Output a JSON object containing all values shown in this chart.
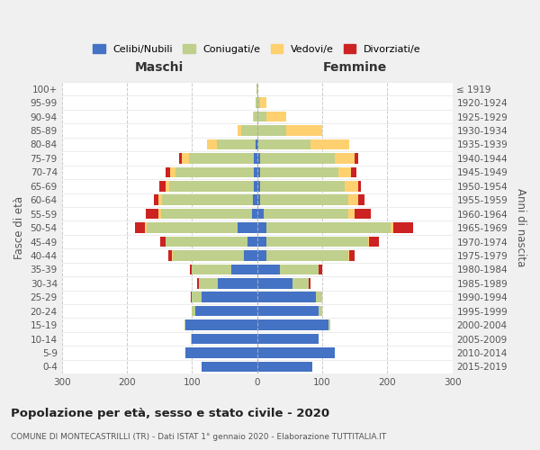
{
  "age_groups": [
    "100+",
    "95-99",
    "90-94",
    "85-89",
    "80-84",
    "75-79",
    "70-74",
    "65-69",
    "60-64",
    "55-59",
    "50-54",
    "45-49",
    "40-44",
    "35-39",
    "30-34",
    "25-29",
    "20-24",
    "15-19",
    "10-14",
    "5-9",
    "0-4"
  ],
  "birth_years": [
    "≤ 1919",
    "1920-1924",
    "1925-1929",
    "1930-1934",
    "1935-1939",
    "1940-1944",
    "1945-1949",
    "1950-1954",
    "1955-1959",
    "1960-1964",
    "1965-1969",
    "1970-1974",
    "1975-1979",
    "1980-1984",
    "1985-1989",
    "1990-1994",
    "1995-1999",
    "2000-2004",
    "2005-2009",
    "2010-2014",
    "2015-2019"
  ],
  "maschi": {
    "celibi": [
      0,
      0,
      0,
      0,
      2,
      5,
      5,
      5,
      6,
      8,
      30,
      15,
      20,
      40,
      60,
      85,
      95,
      110,
      100,
      110,
      85
    ],
    "coniugati": [
      1,
      2,
      5,
      25,
      60,
      100,
      120,
      130,
      140,
      140,
      140,
      125,
      110,
      60,
      30,
      15,
      5,
      2,
      2,
      0,
      0
    ],
    "vedovi": [
      0,
      0,
      1,
      5,
      15,
      10,
      8,
      5,
      5,
      3,
      2,
      1,
      1,
      0,
      0,
      0,
      0,
      0,
      0,
      0,
      0
    ],
    "divorziati": [
      0,
      0,
      0,
      0,
      0,
      5,
      8,
      10,
      8,
      20,
      15,
      8,
      5,
      3,
      2,
      2,
      0,
      0,
      0,
      0,
      0
    ]
  },
  "femmine": {
    "nubili": [
      0,
      0,
      0,
      0,
      2,
      5,
      5,
      5,
      5,
      10,
      15,
      15,
      15,
      35,
      55,
      90,
      95,
      110,
      95,
      120,
      85
    ],
    "coniugate": [
      0,
      5,
      15,
      45,
      80,
      115,
      120,
      130,
      135,
      130,
      190,
      155,
      125,
      60,
      25,
      10,
      5,
      2,
      0,
      0,
      0
    ],
    "vedove": [
      2,
      10,
      30,
      55,
      60,
      30,
      20,
      20,
      15,
      10,
      5,
      2,
      2,
      0,
      0,
      0,
      0,
      0,
      0,
      0,
      0
    ],
    "divorziate": [
      0,
      0,
      0,
      0,
      0,
      5,
      8,
      5,
      10,
      25,
      30,
      15,
      8,
      5,
      2,
      0,
      0,
      0,
      0,
      0,
      0
    ]
  },
  "colors": {
    "celibi": "#4472C4",
    "coniugati": "#BFCF8C",
    "vedovi": "#FFD070",
    "divorziati": "#CC2222"
  },
  "title": "Popolazione per età, sesso e stato civile - 2020",
  "subtitle": "COMUNE DI MONTECASTRILLI (TR) - Dati ISTAT 1° gennaio 2020 - Elaborazione TUTTITALIA.IT",
  "xlabel_maschi": "Maschi",
  "xlabel_femmine": "Femmine",
  "ylabel_left": "Fasce di età",
  "ylabel_right": "Anni di nascita",
  "xlim": 300,
  "bg_color": "#F0F0F0",
  "plot_bg": "#FFFFFF",
  "legend_labels": [
    "Celibi/Nubili",
    "Coniugati/e",
    "Vedovi/e",
    "Divorziati/e"
  ]
}
